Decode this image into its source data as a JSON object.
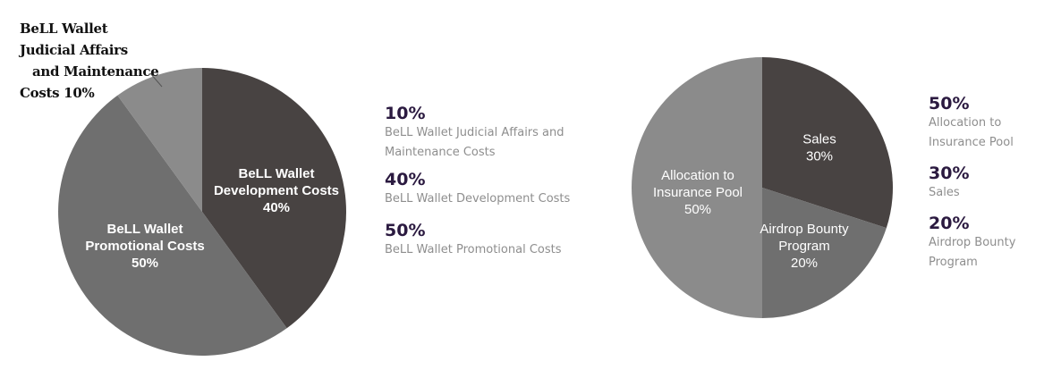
{
  "chart_data": [
    {
      "type": "pie",
      "categories": [
        "BeLL Wallet Development Costs",
        "BeLL Wallet Promotional Costs",
        "BeLL Wallet Judicial Affairs and Maintenance Costs"
      ],
      "values": [
        40,
        50,
        10
      ],
      "colors": [
        "#484342",
        "#6f6f6f",
        "#8b8b8b"
      ],
      "slice_labels": [
        [
          "BeLL Wallet",
          "Development Costs",
          "40%"
        ],
        [
          "BeLL Wallet",
          "Promotional Costs",
          "50%"
        ],
        []
      ],
      "callout": [
        "BeLL Wallet",
        "Judicial Affairs",
        "and Maintenance",
        "Costs 10%"
      ],
      "legend": [
        {
          "pct": "10%",
          "lines": [
            "BeLL Wallet Judicial Affairs and",
            "Maintenance Costs"
          ]
        },
        {
          "pct": "40%",
          "lines": [
            "BeLL Wallet Development Costs"
          ]
        },
        {
          "pct": "50%",
          "lines": [
            "BeLL Wallet Promotional Costs"
          ]
        }
      ]
    },
    {
      "type": "pie",
      "categories": [
        "Sales",
        "Airdrop Bounty Program",
        "Allocation to Insurance Pool"
      ],
      "values": [
        30,
        20,
        50
      ],
      "colors": [
        "#484342",
        "#6f6f6f",
        "#8b8b8b"
      ],
      "slice_labels": [
        [
          "Sales",
          "30%"
        ],
        [
          "Airdrop Bounty",
          "Program",
          "20%"
        ],
        [
          "Allocation to",
          "Insurance Pool",
          "50%"
        ]
      ],
      "legend": [
        {
          "pct": "50%",
          "lines": [
            "Allocation to",
            "Insurance Pool"
          ]
        },
        {
          "pct": "30%",
          "lines": [
            "Sales"
          ]
        },
        {
          "pct": "20%",
          "lines": [
            "Airdrop Bounty",
            "Program"
          ]
        }
      ]
    }
  ]
}
